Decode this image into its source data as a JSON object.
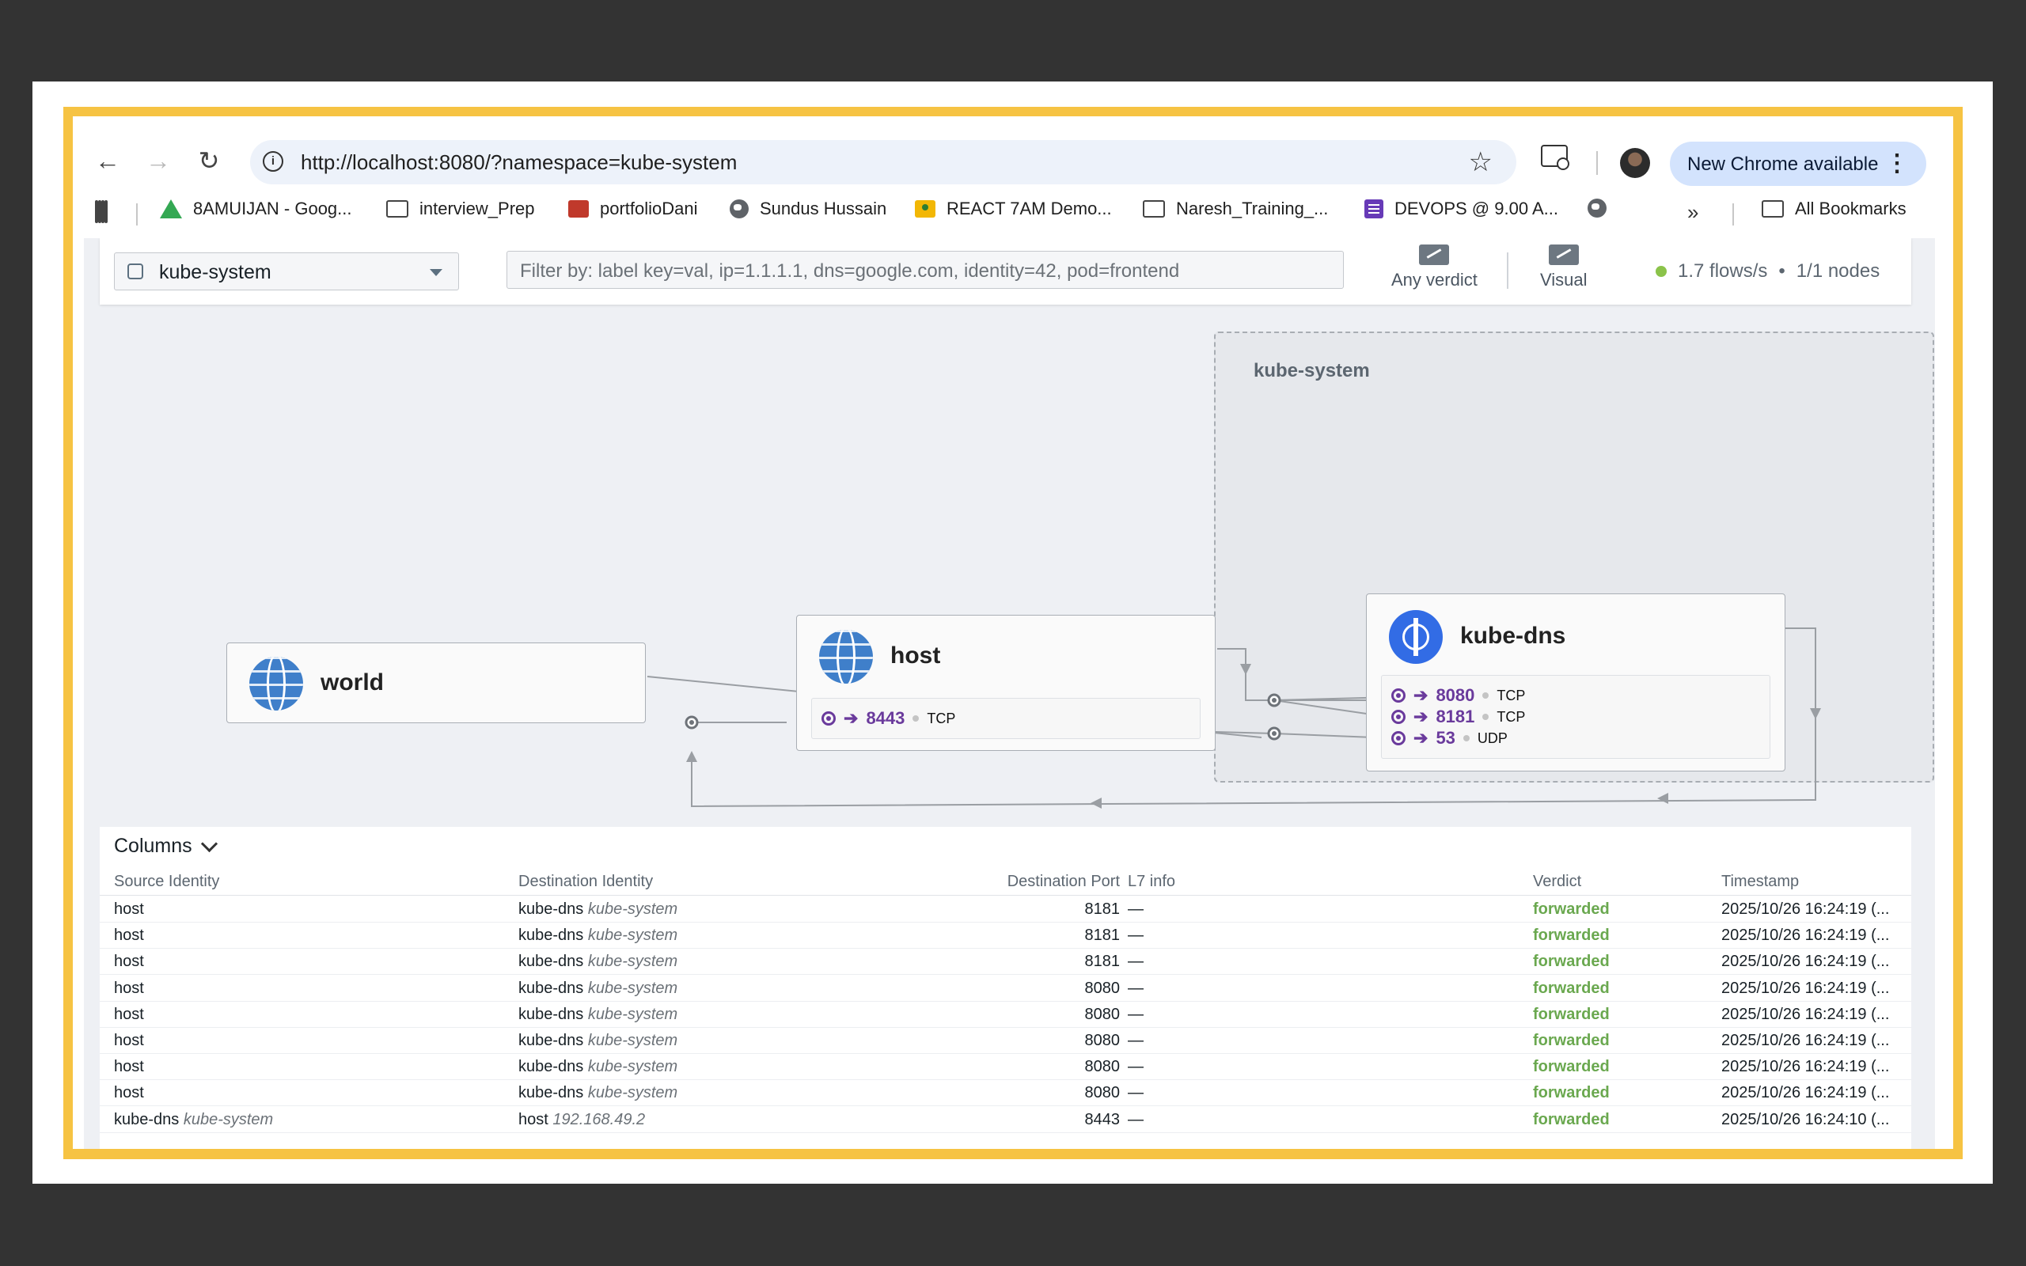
{
  "browser": {
    "url": "http://localhost:8080/?namespace=kube-system",
    "new_chrome_label": "New Chrome available",
    "bookmarks": [
      {
        "label": "8AMUIJAN - Goog...",
        "icon": "drive-icon"
      },
      {
        "label": "interview_Prep",
        "icon": "folder-icon"
      },
      {
        "label": "portfolioDani",
        "icon": "red-app-icon"
      },
      {
        "label": "Sundus Hussain",
        "icon": "globe-icon"
      },
      {
        "label": "REACT 7AM Demo...",
        "icon": "classroom-icon"
      },
      {
        "label": "Naresh_Training_...",
        "icon": "folder-icon"
      },
      {
        "label": "DEVOPS @ 9.00 A...",
        "icon": "forms-icon"
      }
    ],
    "all_bookmarks_label": "All Bookmarks"
  },
  "app": {
    "namespace": "kube-system",
    "filter_placeholder": "Filter by: label key=val, ip=1.1.1.1, dns=google.com, identity=42, pod=frontend",
    "verdict_label": "Any verdict",
    "visual_label": "Visual",
    "flows_rate": "1.7 flows/s",
    "nodes": "1/1 nodes",
    "status_color": "#8bc34a"
  },
  "map": {
    "namespace_box_title": "kube-system",
    "cards": {
      "world": {
        "title": "world"
      },
      "host": {
        "title": "host",
        "ports": [
          {
            "port": "8443",
            "proto": "TCP"
          }
        ]
      },
      "kube_dns": {
        "title": "kube-dns",
        "ports": [
          {
            "port": "8080",
            "proto": "TCP"
          },
          {
            "port": "8181",
            "proto": "TCP"
          },
          {
            "port": "53",
            "proto": "UDP"
          }
        ]
      }
    },
    "port_arrow": "➔",
    "accent_color": "#6a3a9c"
  },
  "table": {
    "columns_label": "Columns",
    "headers": [
      "Source Identity",
      "Destination Identity",
      "Destination Port",
      "L7 info",
      "Verdict",
      "Timestamp"
    ],
    "rows": [
      {
        "src": "host",
        "src_ns": "",
        "dst": "kube-dns",
        "dst_ns": "kube-system",
        "port": "8181",
        "l7": "—",
        "verdict": "forwarded",
        "ts": "2025/10/26 16:24:19 (..."
      },
      {
        "src": "host",
        "src_ns": "",
        "dst": "kube-dns",
        "dst_ns": "kube-system",
        "port": "8181",
        "l7": "—",
        "verdict": "forwarded",
        "ts": "2025/10/26 16:24:19 (..."
      },
      {
        "src": "host",
        "src_ns": "",
        "dst": "kube-dns",
        "dst_ns": "kube-system",
        "port": "8181",
        "l7": "—",
        "verdict": "forwarded",
        "ts": "2025/10/26 16:24:19 (..."
      },
      {
        "src": "host",
        "src_ns": "",
        "dst": "kube-dns",
        "dst_ns": "kube-system",
        "port": "8080",
        "l7": "—",
        "verdict": "forwarded",
        "ts": "2025/10/26 16:24:19 (..."
      },
      {
        "src": "host",
        "src_ns": "",
        "dst": "kube-dns",
        "dst_ns": "kube-system",
        "port": "8080",
        "l7": "—",
        "verdict": "forwarded",
        "ts": "2025/10/26 16:24:19 (..."
      },
      {
        "src": "host",
        "src_ns": "",
        "dst": "kube-dns",
        "dst_ns": "kube-system",
        "port": "8080",
        "l7": "—",
        "verdict": "forwarded",
        "ts": "2025/10/26 16:24:19 (..."
      },
      {
        "src": "host",
        "src_ns": "",
        "dst": "kube-dns",
        "dst_ns": "kube-system",
        "port": "8080",
        "l7": "—",
        "verdict": "forwarded",
        "ts": "2025/10/26 16:24:19 (..."
      },
      {
        "src": "host",
        "src_ns": "",
        "dst": "kube-dns",
        "dst_ns": "kube-system",
        "port": "8080",
        "l7": "—",
        "verdict": "forwarded",
        "ts": "2025/10/26 16:24:19 (..."
      },
      {
        "src": "kube-dns",
        "src_ns": "kube-system",
        "dst": "host",
        "dst_ns": "192.168.49.2",
        "port": "8443",
        "l7": "—",
        "verdict": "forwarded",
        "ts": "2025/10/26 16:24:10 (..."
      }
    ],
    "verdict_color": "#6aa84f"
  }
}
